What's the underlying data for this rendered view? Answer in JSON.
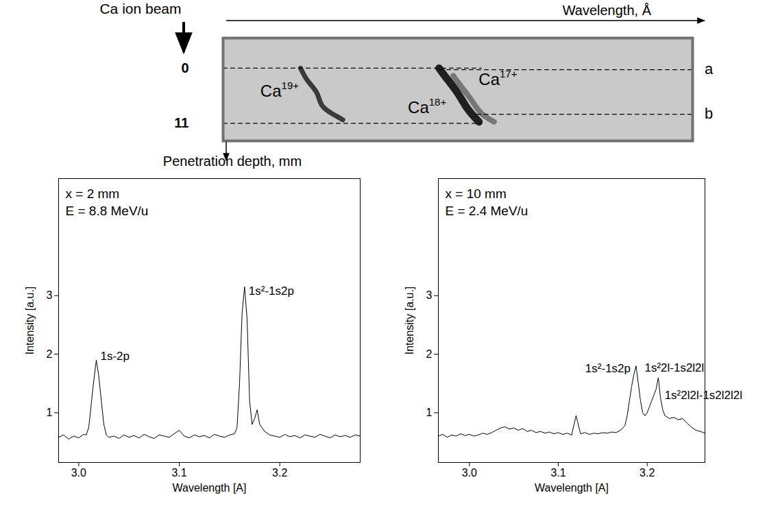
{
  "chart_data": [
    {
      "type": "image",
      "x_label": "Wavelength, Å",
      "y_label": "Penetration depth, mm",
      "beam_label": "Ca ion beam",
      "xlim": [
        0,
        100
      ],
      "ylim": [
        14.5,
        -6
      ],
      "yticks": [
        0,
        11
      ],
      "tick_labels": "y",
      "series": [
        {
          "name": "Ca19+",
          "color": "#2a2a2a",
          "x": [
            16.5,
            18,
            20,
            21.2,
            24,
            25.5
          ],
          "y": [
            0,
            2.5,
            5,
            7.6,
            9.5,
            10.3
          ]
        },
        {
          "name": "Ca18+",
          "color": "#0d0d0d",
          "x": [
            46,
            48,
            50,
            52,
            54.5
          ],
          "y": [
            0,
            2.5,
            5,
            8,
            10.7
          ]
        },
        {
          "name": "Ca17+",
          "color": "#6e6e6e",
          "x": [
            49,
            51,
            53,
            55,
            57.7
          ],
          "y": [
            1.5,
            4,
            6.5,
            9,
            10.7
          ]
        }
      ],
      "reference_lines": [
        {
          "y": 0,
          "x": [
            0,
            55
          ]
        },
        {
          "y": 11,
          "x": [
            0,
            55
          ]
        },
        {
          "y": 0.3,
          "x": [
            46,
            100
          ],
          "label": "a"
        },
        {
          "y": 9.2,
          "x": [
            54,
            100
          ],
          "label": "b"
        }
      ]
    },
    {
      "type": "line",
      "x_label": "Wavelength [A]",
      "y_label": "Intensity [a.u.]",
      "info": [
        "x = 2 mm",
        "E = 8.8 MeV/u"
      ],
      "color": "#000000",
      "xlim": [
        2.98,
        3.28
      ],
      "ylim": [
        0.15,
        5.0
      ],
      "xticks": [
        {
          "value": 3.0,
          "label": "3.0"
        },
        {
          "value": 3.1,
          "label": "3.1"
        },
        {
          "value": 3.2,
          "label": "3.2"
        }
      ],
      "yticks": [
        1,
        2,
        3
      ],
      "x": [
        2.98,
        2.985,
        2.99,
        2.995,
        3.0,
        3.005,
        3.0075,
        3.01,
        3.0125,
        3.015,
        3.0175,
        3.02,
        3.0225,
        3.025,
        3.0275,
        3.03,
        3.035,
        3.04,
        3.045,
        3.05,
        3.055,
        3.06,
        3.065,
        3.07,
        3.075,
        3.08,
        3.085,
        3.09,
        3.095,
        3.1,
        3.105,
        3.11,
        3.115,
        3.12,
        3.125,
        3.13,
        3.135,
        3.14,
        3.145,
        3.15,
        3.155,
        3.1575,
        3.16,
        3.1625,
        3.165,
        3.1675,
        3.17,
        3.1725,
        3.175,
        3.1775,
        3.18,
        3.185,
        3.19,
        3.195,
        3.2,
        3.205,
        3.21,
        3.215,
        3.22,
        3.225,
        3.23,
        3.235,
        3.24,
        3.245,
        3.25,
        3.255,
        3.26,
        3.265,
        3.27,
        3.275,
        3.28
      ],
      "values": [
        0.58,
        0.62,
        0.55,
        0.6,
        0.57,
        0.63,
        0.62,
        0.75,
        1.15,
        1.55,
        1.9,
        1.62,
        1.2,
        0.8,
        0.62,
        0.58,
        0.6,
        0.56,
        0.62,
        0.58,
        0.61,
        0.57,
        0.63,
        0.59,
        0.56,
        0.62,
        0.6,
        0.58,
        0.64,
        0.7,
        0.6,
        0.57,
        0.62,
        0.59,
        0.61,
        0.57,
        0.63,
        0.6,
        0.58,
        0.62,
        0.64,
        0.75,
        1.5,
        2.7,
        3.15,
        2.6,
        1.2,
        0.8,
        0.9,
        1.05,
        0.8,
        0.68,
        0.62,
        0.6,
        0.58,
        0.63,
        0.59,
        0.61,
        0.57,
        0.62,
        0.6,
        0.58,
        0.63,
        0.6,
        0.57,
        0.62,
        0.59,
        0.61,
        0.58,
        0.62,
        0.6
      ],
      "annotations": [
        {
          "text": "1s-2p",
          "x": 3.0175,
          "y": 1.9
        },
        {
          "text": "1s²-1s2p",
          "x": 3.165,
          "y": 3.15
        }
      ]
    },
    {
      "type": "line",
      "x_label": "Wavelength [A]",
      "y_label": "Intensity [a.u.]",
      "info": [
        "x = 10 mm",
        "E = 2.4 MeV/u"
      ],
      "color": "#000000",
      "xlim": [
        2.965,
        3.265
      ],
      "ylim": [
        0.15,
        5.0
      ],
      "xticks": [
        {
          "value": 3.0,
          "label": "3.0"
        },
        {
          "value": 3.1,
          "label": "3.1"
        },
        {
          "value": 3.2,
          "label": "3.2"
        }
      ],
      "yticks": [
        1,
        2,
        3
      ],
      "x": [
        2.965,
        2.97,
        2.975,
        2.98,
        2.985,
        2.99,
        2.995,
        3.0,
        3.005,
        3.01,
        3.015,
        3.02,
        3.025,
        3.03,
        3.035,
        3.04,
        3.045,
        3.05,
        3.055,
        3.06,
        3.065,
        3.07,
        3.075,
        3.08,
        3.085,
        3.09,
        3.095,
        3.1,
        3.105,
        3.11,
        3.115,
        3.12,
        3.125,
        3.13,
        3.135,
        3.14,
        3.145,
        3.15,
        3.155,
        3.16,
        3.165,
        3.17,
        3.175,
        3.1775,
        3.18,
        3.1825,
        3.185,
        3.1875,
        3.19,
        3.1925,
        3.195,
        3.1975,
        3.2,
        3.2025,
        3.205,
        3.2075,
        3.21,
        3.2125,
        3.215,
        3.2175,
        3.22,
        3.225,
        3.23,
        3.235,
        3.24,
        3.245,
        3.25,
        3.255,
        3.26,
        3.265
      ],
      "values": [
        0.6,
        0.63,
        0.58,
        0.62,
        0.6,
        0.64,
        0.61,
        0.63,
        0.6,
        0.62,
        0.65,
        0.63,
        0.66,
        0.7,
        0.74,
        0.76,
        0.72,
        0.74,
        0.7,
        0.73,
        0.68,
        0.7,
        0.66,
        0.68,
        0.65,
        0.67,
        0.64,
        0.66,
        0.63,
        0.65,
        0.62,
        0.95,
        0.64,
        0.66,
        0.63,
        0.65,
        0.64,
        0.66,
        0.65,
        0.67,
        0.66,
        0.7,
        0.78,
        0.95,
        1.2,
        1.45,
        1.65,
        1.8,
        1.5,
        1.2,
        1.0,
        0.95,
        1.0,
        1.1,
        1.2,
        1.3,
        1.4,
        1.6,
        1.25,
        1.05,
        0.95,
        0.9,
        0.92,
        0.88,
        0.9,
        0.82,
        0.75,
        0.7,
        0.68,
        0.65
      ],
      "annotations": [
        {
          "text": "1s²-1s2p",
          "x": 3.1875,
          "y": 1.8
        },
        {
          "text": "1s²2l-1s2l2l",
          "x": 3.2125,
          "y": 1.6
        },
        {
          "text": "1s²2l2l-1s2l2l2l",
          "x": 3.215,
          "y": 1.25
        }
      ]
    }
  ]
}
